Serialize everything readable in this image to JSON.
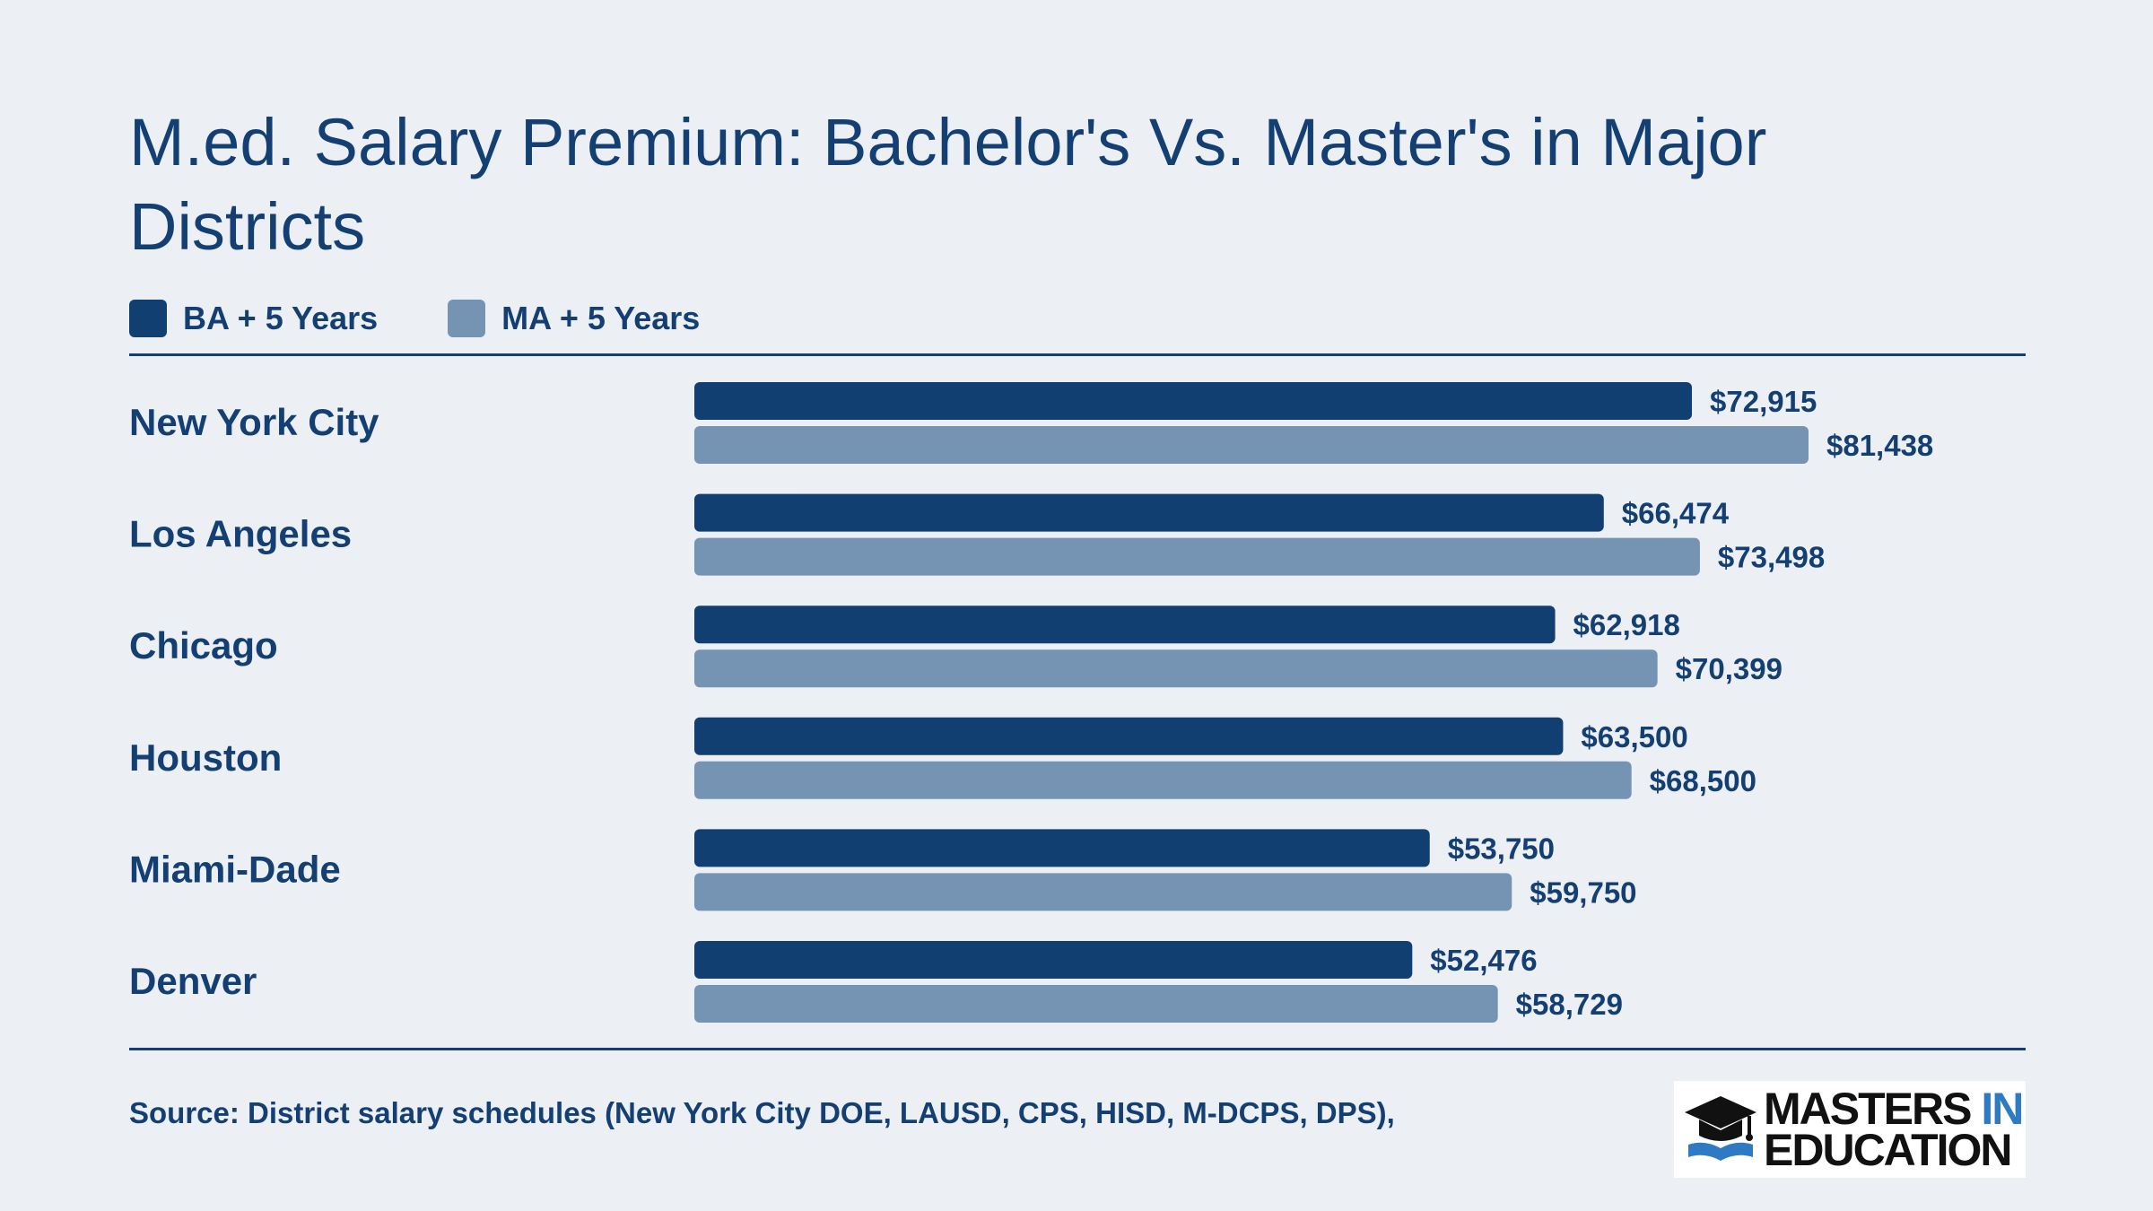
{
  "title": "M.ed. Salary Premium: Bachelor's Vs. Master's in Major Districts",
  "legend": [
    {
      "label": "BA + 5 Years",
      "color": "#123F72"
    },
    {
      "label": "MA + 5 Years",
      "color": "#7594B4"
    }
  ],
  "chart_data": {
    "type": "bar",
    "orientation": "horizontal",
    "title": "M.ed. Salary Premium: Bachelor's Vs. Master's in Major Districts",
    "categories": [
      "New York City",
      "Los Angeles",
      "Chicago",
      "Houston",
      "Miami-Dade",
      "Denver"
    ],
    "series": [
      {
        "name": "BA + 5 Years",
        "color": "#123F72",
        "values": [
          72915,
          66474,
          62918,
          63500,
          53750,
          52476
        ],
        "labels": [
          "$72,915",
          "$66,474",
          "$62,918",
          "$63,500",
          "$53,750",
          "$52,476"
        ]
      },
      {
        "name": "MA + 5 Years",
        "color": "#7594B4",
        "values": [
          81438,
          73498,
          70399,
          68500,
          59750,
          58729
        ],
        "labels": [
          "$81,438",
          "$73,498",
          "$70,399",
          "$68,500",
          "$59,750",
          "$58,729"
        ]
      }
    ],
    "xlim": [
      0,
      81438
    ],
    "grid": false,
    "legend_position": "top-left"
  },
  "source": "Source: District salary schedules (New York City DOE, LAUSD, CPS, HISD, M-DCPS, DPS),",
  "logo": {
    "line1": "MASTERS",
    "line1_accent": "IN",
    "line2": "EDUCATION"
  }
}
